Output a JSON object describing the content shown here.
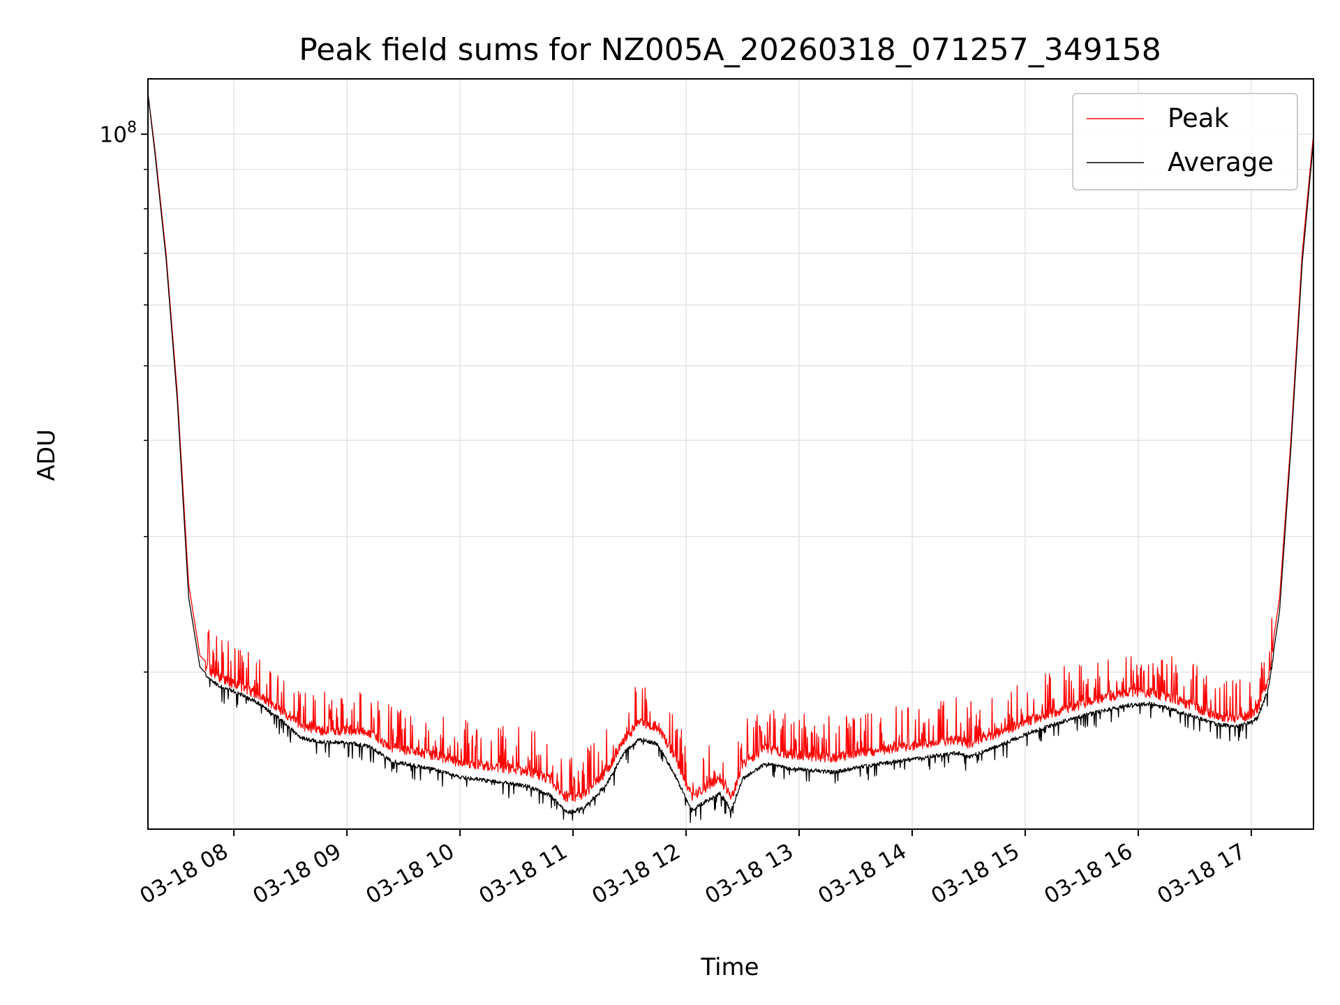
{
  "chart_data": {
    "type": "line",
    "title": "Peak field sums for NZ005A_20260318_071257_349158",
    "xlabel": "Time",
    "ylabel": "ADU",
    "x_unit": "hours since 03-18 00:00",
    "xlim": [
      7.24,
      17.55
    ],
    "yscale": "log",
    "ylim": [
      12500000,
      118000000
    ],
    "grid": true,
    "legend_position": "top-right",
    "x_ticks": [
      {
        "value": 8,
        "label": "03-18 08"
      },
      {
        "value": 9,
        "label": "03-18 09"
      },
      {
        "value": 10,
        "label": "03-18 10"
      },
      {
        "value": 11,
        "label": "03-18 11"
      },
      {
        "value": 12,
        "label": "03-18 12"
      },
      {
        "value": 13,
        "label": "03-18 13"
      },
      {
        "value": 14,
        "label": "03-18 14"
      },
      {
        "value": 15,
        "label": "03-18 15"
      },
      {
        "value": 16,
        "label": "03-18 16"
      },
      {
        "value": 17,
        "label": "03-18 17"
      }
    ],
    "y_major_tick": {
      "value": 100000000,
      "base": "10",
      "exponent": "8"
    },
    "y_minor_ticks": [
      20000000,
      30000000,
      40000000,
      50000000,
      60000000,
      70000000,
      80000000,
      90000000
    ],
    "series": [
      {
        "name": "Peak",
        "color": "#ff0000",
        "x": [
          7.24,
          7.3,
          7.4,
          7.5,
          7.6,
          7.7,
          7.8,
          7.9,
          8.0,
          8.2,
          8.4,
          8.6,
          8.8,
          9.0,
          9.2,
          9.4,
          9.6,
          9.8,
          10.0,
          10.3,
          10.6,
          10.8,
          10.95,
          11.1,
          11.3,
          11.45,
          11.6,
          11.75,
          11.9,
          12.05,
          12.15,
          12.3,
          12.4,
          12.5,
          12.7,
          12.9,
          13.1,
          13.3,
          13.6,
          14.0,
          14.4,
          14.5,
          14.8,
          15.0,
          15.3,
          15.6,
          15.9,
          16.1,
          16.3,
          16.5,
          16.7,
          16.85,
          16.95,
          17.05,
          17.15,
          17.25,
          17.35,
          17.45,
          17.55
        ],
        "values": [
          113000000,
          96000000,
          70000000,
          46000000,
          26000000,
          21000000,
          20300000,
          19900000,
          19600000,
          19000000,
          18200000,
          17300000,
          17000000,
          17100000,
          16900000,
          16200000,
          16000000,
          15800000,
          15500000,
          15300000,
          15100000,
          14700000,
          13900000,
          14100000,
          15100000,
          16600000,
          17500000,
          17200000,
          15800000,
          14000000,
          14300000,
          14800000,
          13900000,
          15400000,
          16200000,
          15900000,
          15800000,
          15700000,
          16000000,
          16300000,
          16600000,
          16400000,
          17000000,
          17500000,
          18100000,
          18600000,
          19100000,
          19100000,
          18800000,
          18300000,
          17800000,
          17700000,
          17800000,
          18100000,
          19800000,
          25000000,
          40000000,
          70000000,
          100000000
        ]
      },
      {
        "name": "Average",
        "color": "#000000",
        "x": [
          7.24,
          7.3,
          7.4,
          7.5,
          7.6,
          7.7,
          7.8,
          7.9,
          8.0,
          8.2,
          8.4,
          8.6,
          8.8,
          9.0,
          9.2,
          9.4,
          9.6,
          9.8,
          10.0,
          10.3,
          10.6,
          10.8,
          10.95,
          11.1,
          11.3,
          11.45,
          11.6,
          11.75,
          11.9,
          12.05,
          12.15,
          12.3,
          12.4,
          12.5,
          12.7,
          12.9,
          13.1,
          13.3,
          13.6,
          14.0,
          14.4,
          14.5,
          14.8,
          15.0,
          15.3,
          15.6,
          15.9,
          16.1,
          16.3,
          16.5,
          16.7,
          16.85,
          16.95,
          17.05,
          17.15,
          17.25,
          17.35,
          17.45,
          17.55
        ],
        "values": [
          113000000,
          95000000,
          69000000,
          45000000,
          25000000,
          20300000,
          19600000,
          19200000,
          19000000,
          18400000,
          17500000,
          16500000,
          16300000,
          16300000,
          16100000,
          15400000,
          15200000,
          15000000,
          14700000,
          14500000,
          14300000,
          13900000,
          13200000,
          13400000,
          14400000,
          15800000,
          16500000,
          16200000,
          14800000,
          13300000,
          13600000,
          14000000,
          13300000,
          14600000,
          15300000,
          15100000,
          15000000,
          14900000,
          15200000,
          15500000,
          15800000,
          15600000,
          16200000,
          16700000,
          17300000,
          17800000,
          18200000,
          18300000,
          18000000,
          17600000,
          17200000,
          17100000,
          17200000,
          17500000,
          19100000,
          24000000,
          39000000,
          68000000,
          98000000
        ]
      }
    ]
  }
}
